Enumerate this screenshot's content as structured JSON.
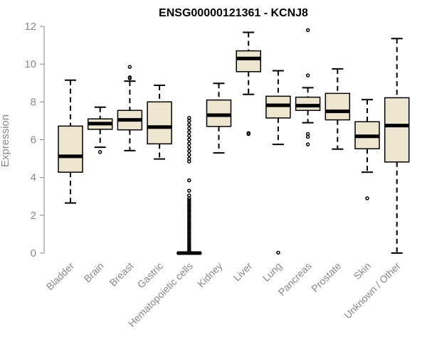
{
  "chart_data": {
    "type": "box",
    "title": "ENSG00000121361 - KCNJ8",
    "xlabel": "",
    "ylabel": "Expression",
    "ylim": [
      0,
      12
    ],
    "yticks": [
      0,
      2,
      4,
      6,
      8,
      10,
      12
    ],
    "box_fill": "#ede5d0",
    "categories": [
      "Bladder",
      "Brain",
      "Breast",
      "Gastric",
      "Hematopoietic cells",
      "Kidney",
      "Liver",
      "Lung",
      "Pancreas",
      "Prostate",
      "Skin",
      "Unknown / Other"
    ],
    "boxes": [
      {
        "category": "Bladder",
        "whisker_low": 2.65,
        "q1": 4.28,
        "median": 5.12,
        "q3": 6.72,
        "whisker_high": 9.15,
        "outliers": []
      },
      {
        "category": "Brain",
        "whisker_low": 5.6,
        "q1": 6.55,
        "median": 6.85,
        "q3": 7.1,
        "whisker_high": 7.72,
        "outliers": [
          5.35
        ]
      },
      {
        "category": "Breast",
        "whisker_low": 5.42,
        "q1": 6.52,
        "median": 7.05,
        "q3": 7.55,
        "whisker_high": 9.1,
        "outliers": [
          9.25,
          9.3,
          9.85
        ]
      },
      {
        "category": "Gastric",
        "whisker_low": 4.98,
        "q1": 5.78,
        "median": 6.67,
        "q3": 8.0,
        "whisker_high": 8.88,
        "outliers": []
      },
      {
        "category": "Hematopoietic cells",
        "whisker_low": 0.0,
        "q1": 0.0,
        "median": 0.0,
        "q3": 0.0,
        "whisker_high": 0.0,
        "outliers": [
          0.12,
          0.2,
          0.3,
          0.4,
          0.5,
          0.6,
          0.7,
          0.8,
          0.9,
          1.0,
          1.1,
          1.2,
          1.3,
          1.4,
          1.5,
          1.6,
          1.7,
          1.8,
          1.9,
          2.0,
          2.1,
          2.2,
          2.3,
          2.4,
          2.5,
          2.6,
          2.7,
          2.8,
          2.9,
          3.05,
          3.3,
          3.85,
          4.85,
          5.0,
          5.2,
          5.4,
          5.6,
          5.8,
          6.0,
          6.2,
          6.4,
          6.6,
          6.8,
          7.0,
          7.15
        ]
      },
      {
        "category": "Kidney",
        "whisker_low": 5.3,
        "q1": 6.7,
        "median": 7.3,
        "q3": 8.1,
        "whisker_high": 8.98,
        "outliers": []
      },
      {
        "category": "Liver",
        "whisker_low": 8.4,
        "q1": 9.6,
        "median": 10.3,
        "q3": 10.7,
        "whisker_high": 11.68,
        "outliers": [
          6.35,
          6.3
        ]
      },
      {
        "category": "Lung",
        "whisker_low": 5.75,
        "q1": 7.15,
        "median": 7.82,
        "q3": 8.3,
        "whisker_high": 9.65,
        "outliers": [
          0.02
        ]
      },
      {
        "category": "Pancreas",
        "whisker_low": 6.9,
        "q1": 7.55,
        "median": 7.8,
        "q3": 8.25,
        "whisker_high": 8.75,
        "outliers": [
          11.8,
          9.4,
          6.3,
          6.15,
          5.75
        ]
      },
      {
        "category": "Prostate",
        "whisker_low": 5.5,
        "q1": 7.05,
        "median": 7.5,
        "q3": 8.45,
        "whisker_high": 9.75,
        "outliers": []
      },
      {
        "category": "Skin",
        "whisker_low": 4.28,
        "q1": 5.52,
        "median": 6.18,
        "q3": 6.95,
        "whisker_high": 8.12,
        "outliers": [
          2.9
        ]
      },
      {
        "category": "Unknown / Other",
        "whisker_low": 0.0,
        "q1": 4.82,
        "median": 6.75,
        "q3": 8.22,
        "whisker_high": 11.35,
        "outliers": []
      }
    ]
  }
}
